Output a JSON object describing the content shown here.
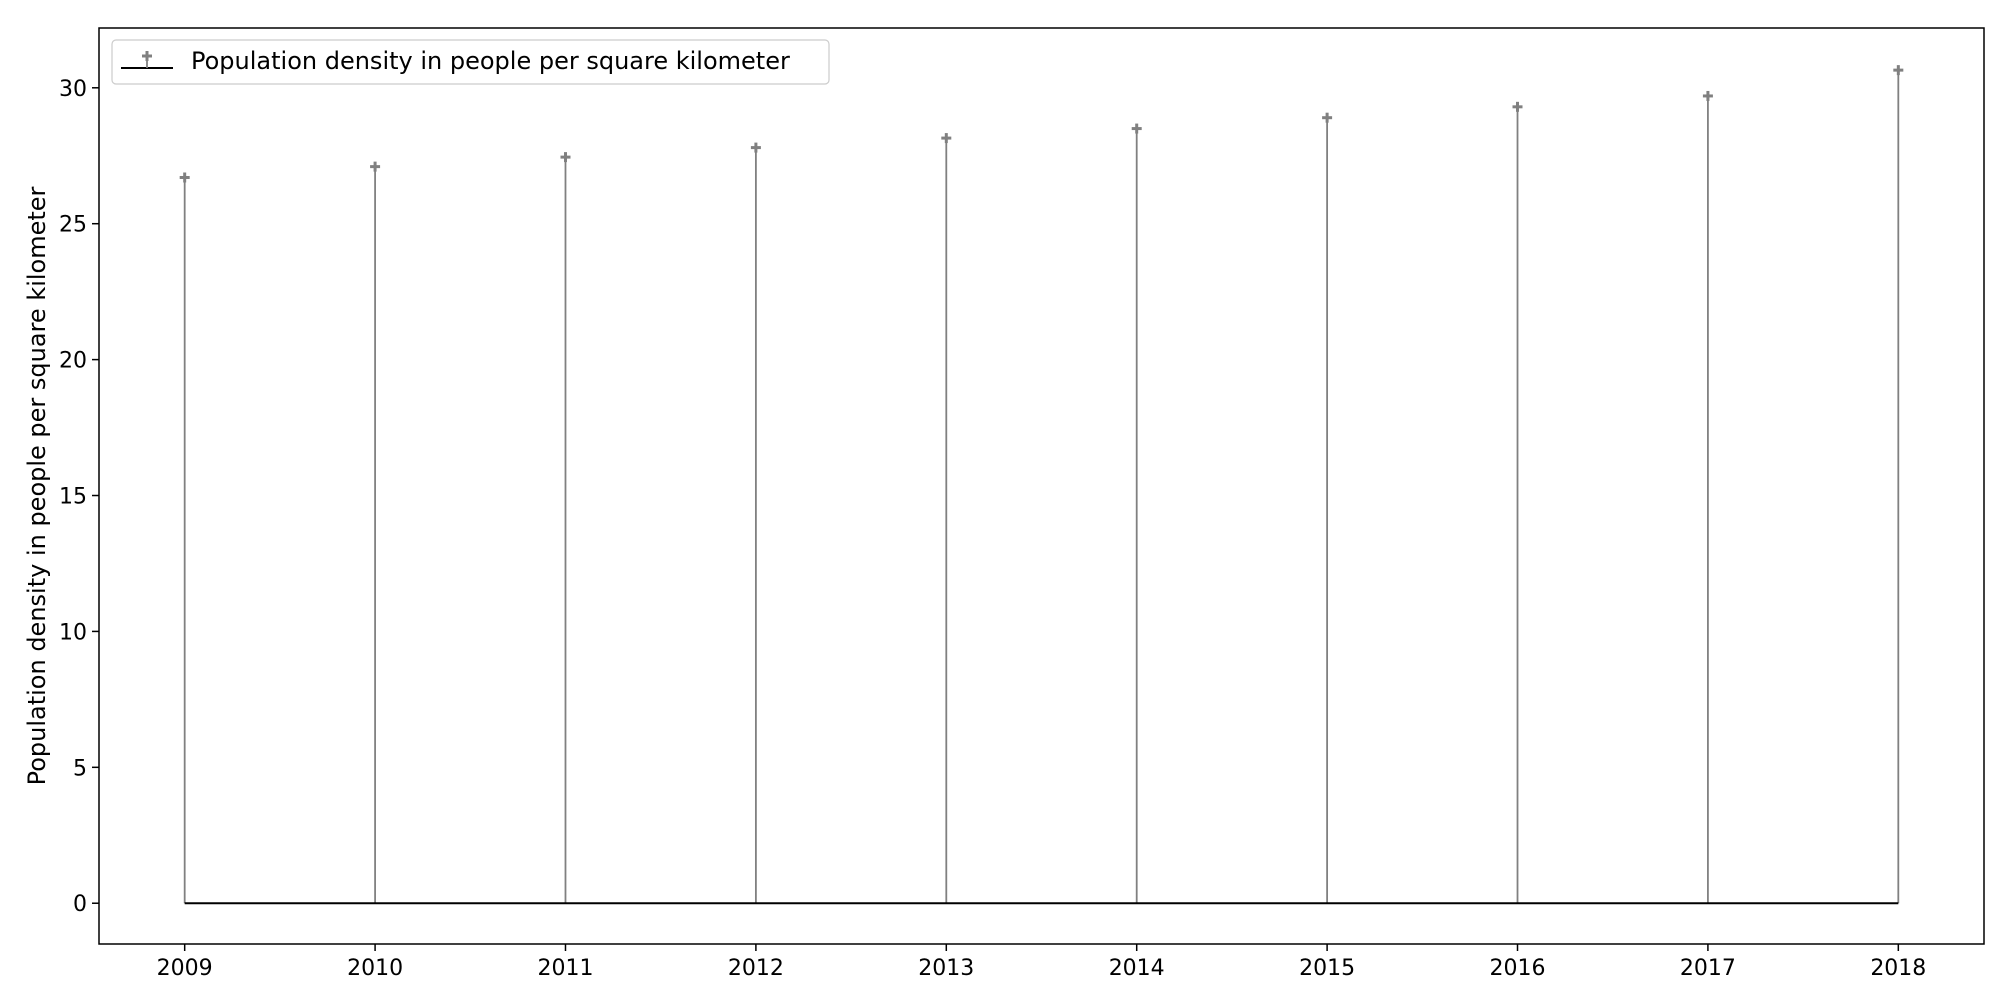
{
  "chart_data": {
    "type": "stem",
    "title": "",
    "xlabel": "",
    "ylabel": "Population density in people per square kilometer",
    "x": [
      2009,
      2010,
      2011,
      2012,
      2013,
      2014,
      2015,
      2016,
      2017,
      2018
    ],
    "x_tick_labels": [
      "2009",
      "2010",
      "2011",
      "2012",
      "2013",
      "2014",
      "2015",
      "2016",
      "2017",
      "2018"
    ],
    "y_ticks": [
      0,
      5,
      10,
      15,
      20,
      25,
      30
    ],
    "y_tick_labels": [
      "0",
      "5",
      "10",
      "15",
      "20",
      "25",
      "30"
    ],
    "xlim": [
      2008.55,
      2018.45
    ],
    "ylim": [
      -1.5,
      32.2
    ],
    "grid": false,
    "legend": {
      "position": "top-left"
    },
    "series": [
      {
        "name": "Population density in people per square kilometer",
        "color": "#808080",
        "marker": "plus",
        "baseline": 0,
        "baseline_color": "#000000",
        "values": [
          26.7,
          27.1,
          27.45,
          27.8,
          28.15,
          28.5,
          28.9,
          29.3,
          29.7,
          30.65
        ]
      }
    ]
  }
}
